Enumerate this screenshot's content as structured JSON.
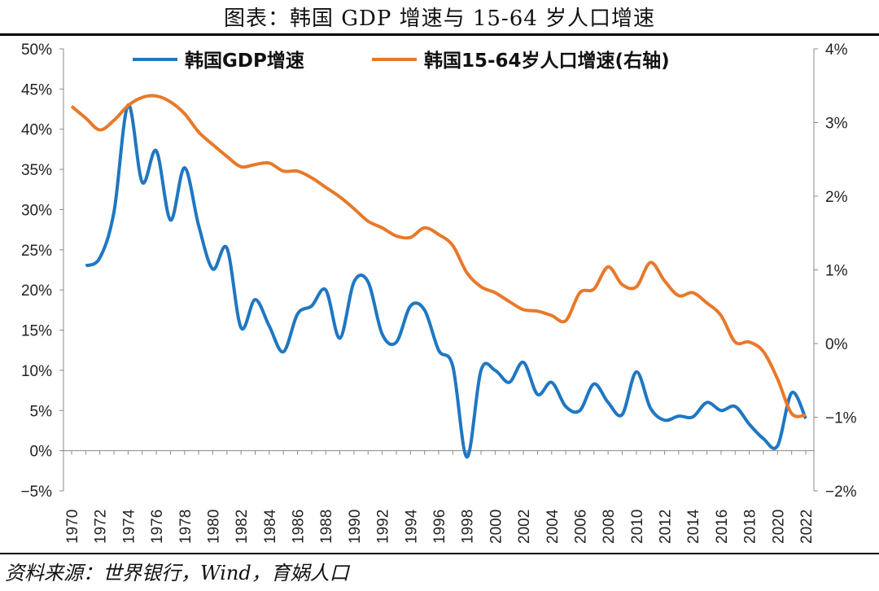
{
  "title": "图表：韩国 GDP 增速与 15-64 岁人口增速",
  "source": "资料来源：世界银行，Wind，育娲人口",
  "chart_data": {
    "type": "line",
    "title": "图表：韩国 GDP 增速与 15-64 岁人口增速",
    "x": [
      1970,
      1971,
      1972,
      1973,
      1974,
      1975,
      1976,
      1977,
      1978,
      1979,
      1980,
      1981,
      1982,
      1983,
      1984,
      1985,
      1986,
      1987,
      1988,
      1989,
      1990,
      1991,
      1992,
      1993,
      1994,
      1995,
      1996,
      1997,
      1998,
      1999,
      2000,
      2001,
      2002,
      2003,
      2004,
      2005,
      2006,
      2007,
      2008,
      2009,
      2010,
      2011,
      2012,
      2013,
      2014,
      2015,
      2016,
      2017,
      2018,
      2019,
      2020,
      2021,
      2022
    ],
    "x_ticks": [
      "1970",
      "1972",
      "1974",
      "1976",
      "1978",
      "1980",
      "1982",
      "1984",
      "1986",
      "1988",
      "1990",
      "1992",
      "1994",
      "1996",
      "1998",
      "2000",
      "2002",
      "2004",
      "2006",
      "2008",
      "2010",
      "2012",
      "2014",
      "2016",
      "2018",
      "2020",
      "2022"
    ],
    "y_left": {
      "range": [
        -5,
        50
      ],
      "ticks": [
        "−5%",
        "0%",
        "5%",
        "10%",
        "15%",
        "20%",
        "25%",
        "30%",
        "35%",
        "40%",
        "45%",
        "50%"
      ]
    },
    "y_right": {
      "range": [
        -2,
        4
      ],
      "ticks": [
        "−2%",
        "−1%",
        "0%",
        "1%",
        "2%",
        "3%",
        "4%"
      ]
    },
    "legend_position": "top",
    "series": [
      {
        "name": "韩国GDP增速",
        "axis": "left",
        "color": "#1f77c2",
        "values": [
          null,
          23,
          24,
          29.7,
          43,
          33.4,
          37.3,
          28.7,
          35.2,
          28,
          22.6,
          25.2,
          15.3,
          18.8,
          15.5,
          12.3,
          17,
          18,
          20,
          14,
          21,
          21,
          14.5,
          13.5,
          18,
          17.5,
          12.5,
          10.5,
          -0.8,
          10,
          10,
          8.5,
          11,
          7,
          8.5,
          5.5,
          5,
          8.3,
          6,
          4.5,
          9.8,
          5.3,
          3.8,
          4.3,
          4.2,
          6,
          5,
          5.5,
          3.3,
          1.5,
          0.6,
          7.2,
          4
        ]
      },
      {
        "name": "韩国15-64岁人口增速(右轴)",
        "axis": "right",
        "color": "#e8792a",
        "values": [
          3.22,
          3.06,
          2.9,
          3.03,
          3.23,
          3.34,
          3.36,
          3.28,
          3.12,
          2.87,
          2.7,
          2.54,
          2.4,
          2.43,
          2.45,
          2.34,
          2.34,
          2.25,
          2.12,
          1.99,
          1.83,
          1.66,
          1.57,
          1.46,
          1.44,
          1.57,
          1.48,
          1.33,
          0.96,
          0.77,
          0.69,
          0.57,
          0.46,
          0.44,
          0.38,
          0.31,
          0.69,
          0.74,
          1.04,
          0.8,
          0.77,
          1.1,
          0.85,
          0.65,
          0.69,
          0.55,
          0.38,
          0.02,
          0.02,
          -0.11,
          -0.48,
          -0.95,
          -0.97
        ]
      }
    ]
  }
}
